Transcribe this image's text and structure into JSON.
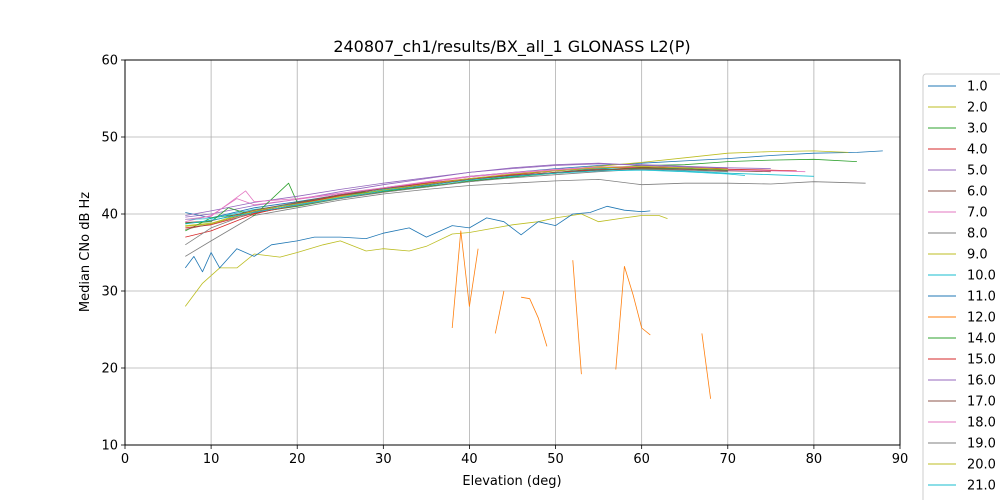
{
  "chart_data": {
    "type": "line",
    "title": "240807_ch1/results/BX_all_1 GLONASS L2(P)",
    "xlabel": "Elevation (deg)",
    "ylabel": "Median CNo dB Hz",
    "xlim": [
      0,
      90
    ],
    "ylim": [
      10,
      60
    ],
    "xticks": [
      0,
      10,
      20,
      30,
      40,
      50,
      60,
      70,
      80,
      90
    ],
    "yticks": [
      10,
      20,
      30,
      40,
      50,
      60
    ],
    "grid": true,
    "legend_position": "right",
    "series": [
      {
        "name": "1.0",
        "color": "#1f77b4",
        "x": [
          7,
          10,
          15,
          20,
          25,
          30,
          35,
          40,
          45,
          50,
          55,
          60,
          65,
          70,
          75,
          80,
          85,
          88
        ],
        "y": [
          40.2,
          39.5,
          40.8,
          41.6,
          42.5,
          43.4,
          44.1,
          44.9,
          45.4,
          45.9,
          46.3,
          46.6,
          46.9,
          47.2,
          47.6,
          47.9,
          48.0,
          48.2
        ]
      },
      {
        "name": "2.0",
        "color": "#bcbd22",
        "x": [
          7,
          10,
          15,
          20,
          25,
          30,
          35,
          40,
          45,
          50,
          55,
          60,
          65,
          70,
          75,
          80,
          84
        ],
        "y": [
          38.5,
          38.8,
          40.5,
          41.4,
          42.3,
          43.1,
          43.9,
          44.6,
          45.2,
          45.7,
          46.2,
          46.7,
          47.3,
          47.9,
          48.1,
          48.2,
          48.0
        ]
      },
      {
        "name": "3.0",
        "color": "#2ca02c",
        "x": [
          7,
          10,
          15,
          20,
          25,
          30,
          35,
          40,
          45,
          50,
          55,
          60,
          65,
          70,
          75,
          80,
          85
        ],
        "y": [
          37.8,
          39.5,
          40.2,
          41.0,
          42.0,
          42.9,
          43.6,
          44.2,
          44.8,
          45.4,
          45.9,
          46.3,
          46.4,
          46.8,
          47.0,
          47.1,
          46.8
        ]
      },
      {
        "name": "4.0",
        "color": "#d62728",
        "x": [
          7,
          10,
          15,
          20,
          25,
          30,
          35,
          40,
          45,
          50,
          55,
          60,
          65,
          70,
          75,
          78
        ],
        "y": [
          38.2,
          38.6,
          40.1,
          41.1,
          42.1,
          43.0,
          43.7,
          44.5,
          45.0,
          45.4,
          45.8,
          46.0,
          46.0,
          45.8,
          45.7,
          45.6
        ]
      },
      {
        "name": "5.0",
        "color": "#9467bd",
        "x": [
          7,
          10,
          15,
          20,
          25,
          30,
          35,
          40,
          45,
          50,
          55,
          60,
          65,
          70,
          75
        ],
        "y": [
          39.6,
          40.0,
          41.1,
          41.9,
          42.9,
          43.8,
          44.6,
          45.4,
          46.0,
          46.4,
          46.6,
          46.3,
          46.1,
          46.0,
          45.9
        ]
      },
      {
        "name": "6.0",
        "color": "#8c564b",
        "x": [
          7,
          10,
          15,
          20,
          25,
          30,
          35,
          40,
          45,
          50,
          55,
          60,
          65,
          70,
          75
        ],
        "y": [
          38.0,
          38.7,
          40.3,
          41.4,
          42.4,
          43.1,
          43.8,
          44.6,
          45.0,
          45.3,
          45.7,
          45.9,
          45.8,
          45.6,
          45.5
        ]
      },
      {
        "name": "7.0",
        "color": "#e377c2",
        "x": [
          7,
          10,
          13,
          15,
          20,
          25,
          30,
          35,
          40,
          45,
          50,
          55,
          60,
          65,
          70,
          75,
          79
        ],
        "y": [
          39.0,
          39.8,
          42.0,
          41.2,
          41.9,
          42.6,
          43.4,
          44.1,
          44.8,
          45.3,
          45.7,
          46.1,
          46.0,
          45.8,
          45.7,
          45.6,
          45.5
        ]
      },
      {
        "name": "8.0",
        "color": "#7f7f7f",
        "x": [
          7,
          10,
          15,
          20,
          25,
          30,
          35,
          40,
          45,
          50,
          55,
          60,
          65,
          70,
          75,
          80,
          86
        ],
        "y": [
          34.5,
          36.5,
          39.8,
          40.8,
          41.8,
          42.6,
          43.2,
          43.7,
          44.0,
          44.3,
          44.5,
          43.8,
          44.0,
          44.0,
          43.9,
          44.2,
          44.0
        ]
      },
      {
        "name": "9.0",
        "color": "#bcbd22",
        "x": [
          7,
          9,
          11,
          13,
          15,
          18,
          20,
          23,
          25,
          28,
          30,
          33,
          35,
          38,
          40,
          43,
          45,
          48,
          50,
          53,
          55,
          58,
          60,
          62,
          63
        ],
        "y": [
          28.0,
          31.0,
          33.0,
          33.0,
          34.8,
          34.4,
          35.0,
          36.0,
          36.5,
          35.2,
          35.5,
          35.2,
          35.8,
          37.4,
          37.6,
          38.2,
          38.6,
          39.0,
          39.5,
          40.0,
          39.0,
          39.5,
          39.8,
          39.8,
          39.4
        ]
      },
      {
        "name": "10.0",
        "color": "#17becf",
        "x": [
          7,
          10,
          15,
          20,
          25,
          30,
          35,
          40,
          45,
          50,
          55,
          60,
          65,
          70,
          75,
          80
        ],
        "y": [
          39.3,
          39.4,
          40.6,
          41.3,
          42.2,
          43.2,
          43.9,
          44.6,
          45.1,
          45.6,
          45.9,
          45.8,
          45.6,
          45.3,
          45.1,
          44.9
        ]
      },
      {
        "name": "11.0",
        "color": "#1f77b4",
        "x": [
          7,
          8,
          9,
          10,
          11,
          13,
          15,
          17,
          20,
          22,
          25,
          28,
          30,
          33,
          35,
          38,
          40,
          42,
          44,
          46,
          48,
          50,
          52,
          54,
          56,
          58,
          60,
          61
        ],
        "y": [
          33.0,
          34.5,
          32.5,
          35.0,
          33.0,
          35.5,
          34.5,
          36.0,
          36.5,
          37.0,
          37.0,
          36.8,
          37.5,
          38.2,
          37.0,
          38.5,
          38.2,
          39.5,
          39.0,
          37.3,
          39.0,
          38.5,
          40.0,
          40.2,
          41.0,
          40.5,
          40.3,
          40.4
        ]
      },
      {
        "name": "12.0",
        "color": "#ff7f0e",
        "x": [
          38,
          39,
          40,
          41,
          null,
          43,
          44,
          null,
          46,
          47,
          48,
          49,
          null,
          52,
          53,
          null,
          57,
          58,
          59,
          60,
          61,
          null,
          67,
          68
        ],
        "y": [
          25.2,
          37.8,
          28.0,
          35.5,
          null,
          24.5,
          30.0,
          null,
          29.2,
          29.0,
          26.5,
          22.8,
          null,
          34.0,
          19.2,
          null,
          19.8,
          33.2,
          29.5,
          25.2,
          24.3,
          null,
          24.5,
          16.0
        ]
      },
      {
        "name": "14.0",
        "color": "#2ca02c",
        "x": [
          7,
          10,
          12,
          15,
          19,
          20,
          25,
          30,
          35,
          40,
          45,
          50,
          55,
          60,
          65,
          70
        ],
        "y": [
          38.8,
          39.0,
          40.8,
          39.8,
          44.0,
          41.5,
          42.5,
          43.0,
          43.5,
          44.3,
          44.8,
          45.3,
          45.7,
          46.0,
          45.9,
          45.7
        ]
      },
      {
        "name": "15.0",
        "color": "#d62728",
        "x": [
          7,
          10,
          15,
          20,
          25,
          30,
          35,
          40,
          45,
          50,
          55,
          60,
          65,
          70
        ],
        "y": [
          37.0,
          37.8,
          40.0,
          41.3,
          42.4,
          43.3,
          44.0,
          44.6,
          45.1,
          45.6,
          46.0,
          46.1,
          46.0,
          45.9
        ]
      },
      {
        "name": "16.0",
        "color": "#9467bd",
        "x": [
          7,
          10,
          15,
          20,
          25,
          30,
          35,
          40,
          45,
          50,
          55,
          60,
          65,
          70
        ],
        "y": [
          39.8,
          40.4,
          41.5,
          42.3,
          43.2,
          44.0,
          44.7,
          45.4,
          45.9,
          46.3,
          46.5,
          46.4,
          46.2,
          46.0
        ]
      },
      {
        "name": "17.0",
        "color": "#8c564b",
        "x": [
          7,
          10,
          15,
          20,
          25,
          30,
          35,
          40,
          45,
          50,
          55,
          60,
          65,
          70
        ],
        "y": [
          38.9,
          39.1,
          40.5,
          41.5,
          42.5,
          43.3,
          43.9,
          44.5,
          45.0,
          45.4,
          45.7,
          45.9,
          45.8,
          45.6
        ]
      },
      {
        "name": "18.0",
        "color": "#e377c2",
        "x": [
          7,
          10,
          14,
          15,
          20,
          25,
          30,
          35,
          40,
          45,
          50,
          55,
          60,
          65,
          70
        ],
        "y": [
          39.3,
          39.7,
          43.0,
          41.6,
          42.0,
          42.7,
          43.4,
          44.2,
          44.9,
          45.4,
          45.8,
          46.1,
          46.2,
          46.0,
          45.8
        ]
      },
      {
        "name": "19.0",
        "color": "#7f7f7f",
        "x": [
          7,
          10,
          15,
          20,
          25,
          30,
          35,
          40,
          45,
          50,
          55,
          60,
          65,
          70
        ],
        "y": [
          36.0,
          38.2,
          40.3,
          41.1,
          42.0,
          42.8,
          43.5,
          44.2,
          44.7,
          45.1,
          45.5,
          45.8,
          45.7,
          45.5
        ]
      },
      {
        "name": "20.0",
        "color": "#bcbd22",
        "x": [
          7,
          10,
          15,
          20,
          25,
          30,
          35,
          40,
          45,
          50,
          55,
          60,
          65,
          70
        ],
        "y": [
          38.4,
          38.7,
          40.4,
          41.3,
          42.2,
          43.1,
          43.9,
          44.6,
          45.2,
          45.6,
          46.0,
          46.2,
          46.0,
          45.8
        ]
      },
      {
        "name": "21.0",
        "color": "#17becf",
        "x": [
          7,
          10,
          15,
          20,
          25,
          30,
          35,
          40,
          45,
          50,
          55,
          60,
          65,
          70,
          72
        ],
        "y": [
          38.7,
          39.2,
          40.2,
          41.2,
          42.1,
          43.0,
          43.7,
          44.4,
          44.9,
          45.3,
          45.6,
          45.7,
          45.5,
          45.2,
          45.0
        ]
      }
    ]
  }
}
